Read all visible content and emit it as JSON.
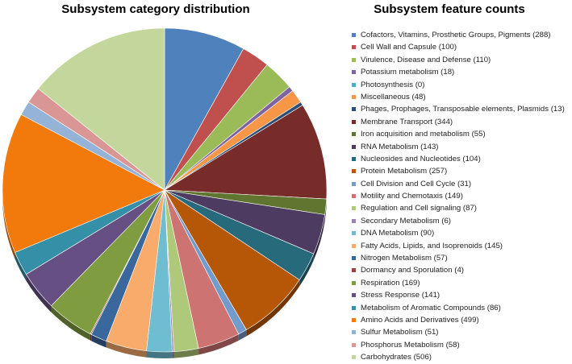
{
  "chart_data": [
    {
      "type": "pie",
      "title": "Subsystem category distribution",
      "slices": [
        {
          "label": "Cofactors, Vitamins, Prosthetic Groups, Pigments",
          "value": 288,
          "color": "#4f81bd"
        },
        {
          "label": "Cell Wall and Capsule",
          "value": 100,
          "color": "#c0504d"
        },
        {
          "label": "Virulence, Disease and Defense",
          "value": 110,
          "color": "#9bbb59"
        },
        {
          "label": "Potassium metabolism",
          "value": 18,
          "color": "#8064a2"
        },
        {
          "label": "Photosynthesis",
          "value": 0,
          "color": "#4bacc6"
        },
        {
          "label": "Miscellaneous",
          "value": 48,
          "color": "#f79646"
        },
        {
          "label": "Phages, Prophages, Transposable elements, Plasmids",
          "value": 13,
          "color": "#2c4d75"
        },
        {
          "label": "Membrane Transport",
          "value": 344,
          "color": "#772c2a"
        },
        {
          "label": "Iron acquisition and metabolism",
          "value": 55,
          "color": "#5f7530"
        },
        {
          "label": "RNA Metabolism",
          "value": 143,
          "color": "#4d3b62"
        },
        {
          "label": "Nucleosides and Nucleotides",
          "value": 104,
          "color": "#276a7c"
        },
        {
          "label": "Protein Metabolism",
          "value": 257,
          "color": "#b65708"
        },
        {
          "label": "Cell Division and Cell Cycle",
          "value": 31,
          "color": "#729aca"
        },
        {
          "label": "Motility and Chemotaxis",
          "value": 149,
          "color": "#cd7371"
        },
        {
          "label": "Regulation and Cell signaling",
          "value": 87,
          "color": "#afc97a"
        },
        {
          "label": "Secondary Metabolism",
          "value": 6,
          "color": "#9983b5"
        },
        {
          "label": "DNA Metabolism",
          "value": 90,
          "color": "#6fbdd1"
        },
        {
          "label": "Fatty Acids, Lipids, and Isoprenoids",
          "value": 145,
          "color": "#f9ab6b"
        },
        {
          "label": "Nitrogen Metabolism",
          "value": 57,
          "color": "#3a679c"
        },
        {
          "label": "Dormancy and Sporulation",
          "value": 4,
          "color": "#9f3e3a"
        },
        {
          "label": "Respiration",
          "value": 169,
          "color": "#7f9c40"
        },
        {
          "label": "Stress Response",
          "value": 141,
          "color": "#664f83"
        },
        {
          "label": "Metabolism of Aromatic Compounds",
          "value": 86,
          "color": "#358fa6"
        },
        {
          "label": "Amino Acids and Derivatives",
          "value": 499,
          "color": "#f27a0c"
        },
        {
          "label": "Sulfur Metabolism",
          "value": 51,
          "color": "#95b3d7"
        },
        {
          "label": "Phosphorus Metabolism",
          "value": 58,
          "color": "#d99694"
        },
        {
          "label": "Carbohydrates",
          "value": 506,
          "color": "#c3d69b"
        }
      ]
    }
  ],
  "legend_title": "Subsystem feature counts"
}
